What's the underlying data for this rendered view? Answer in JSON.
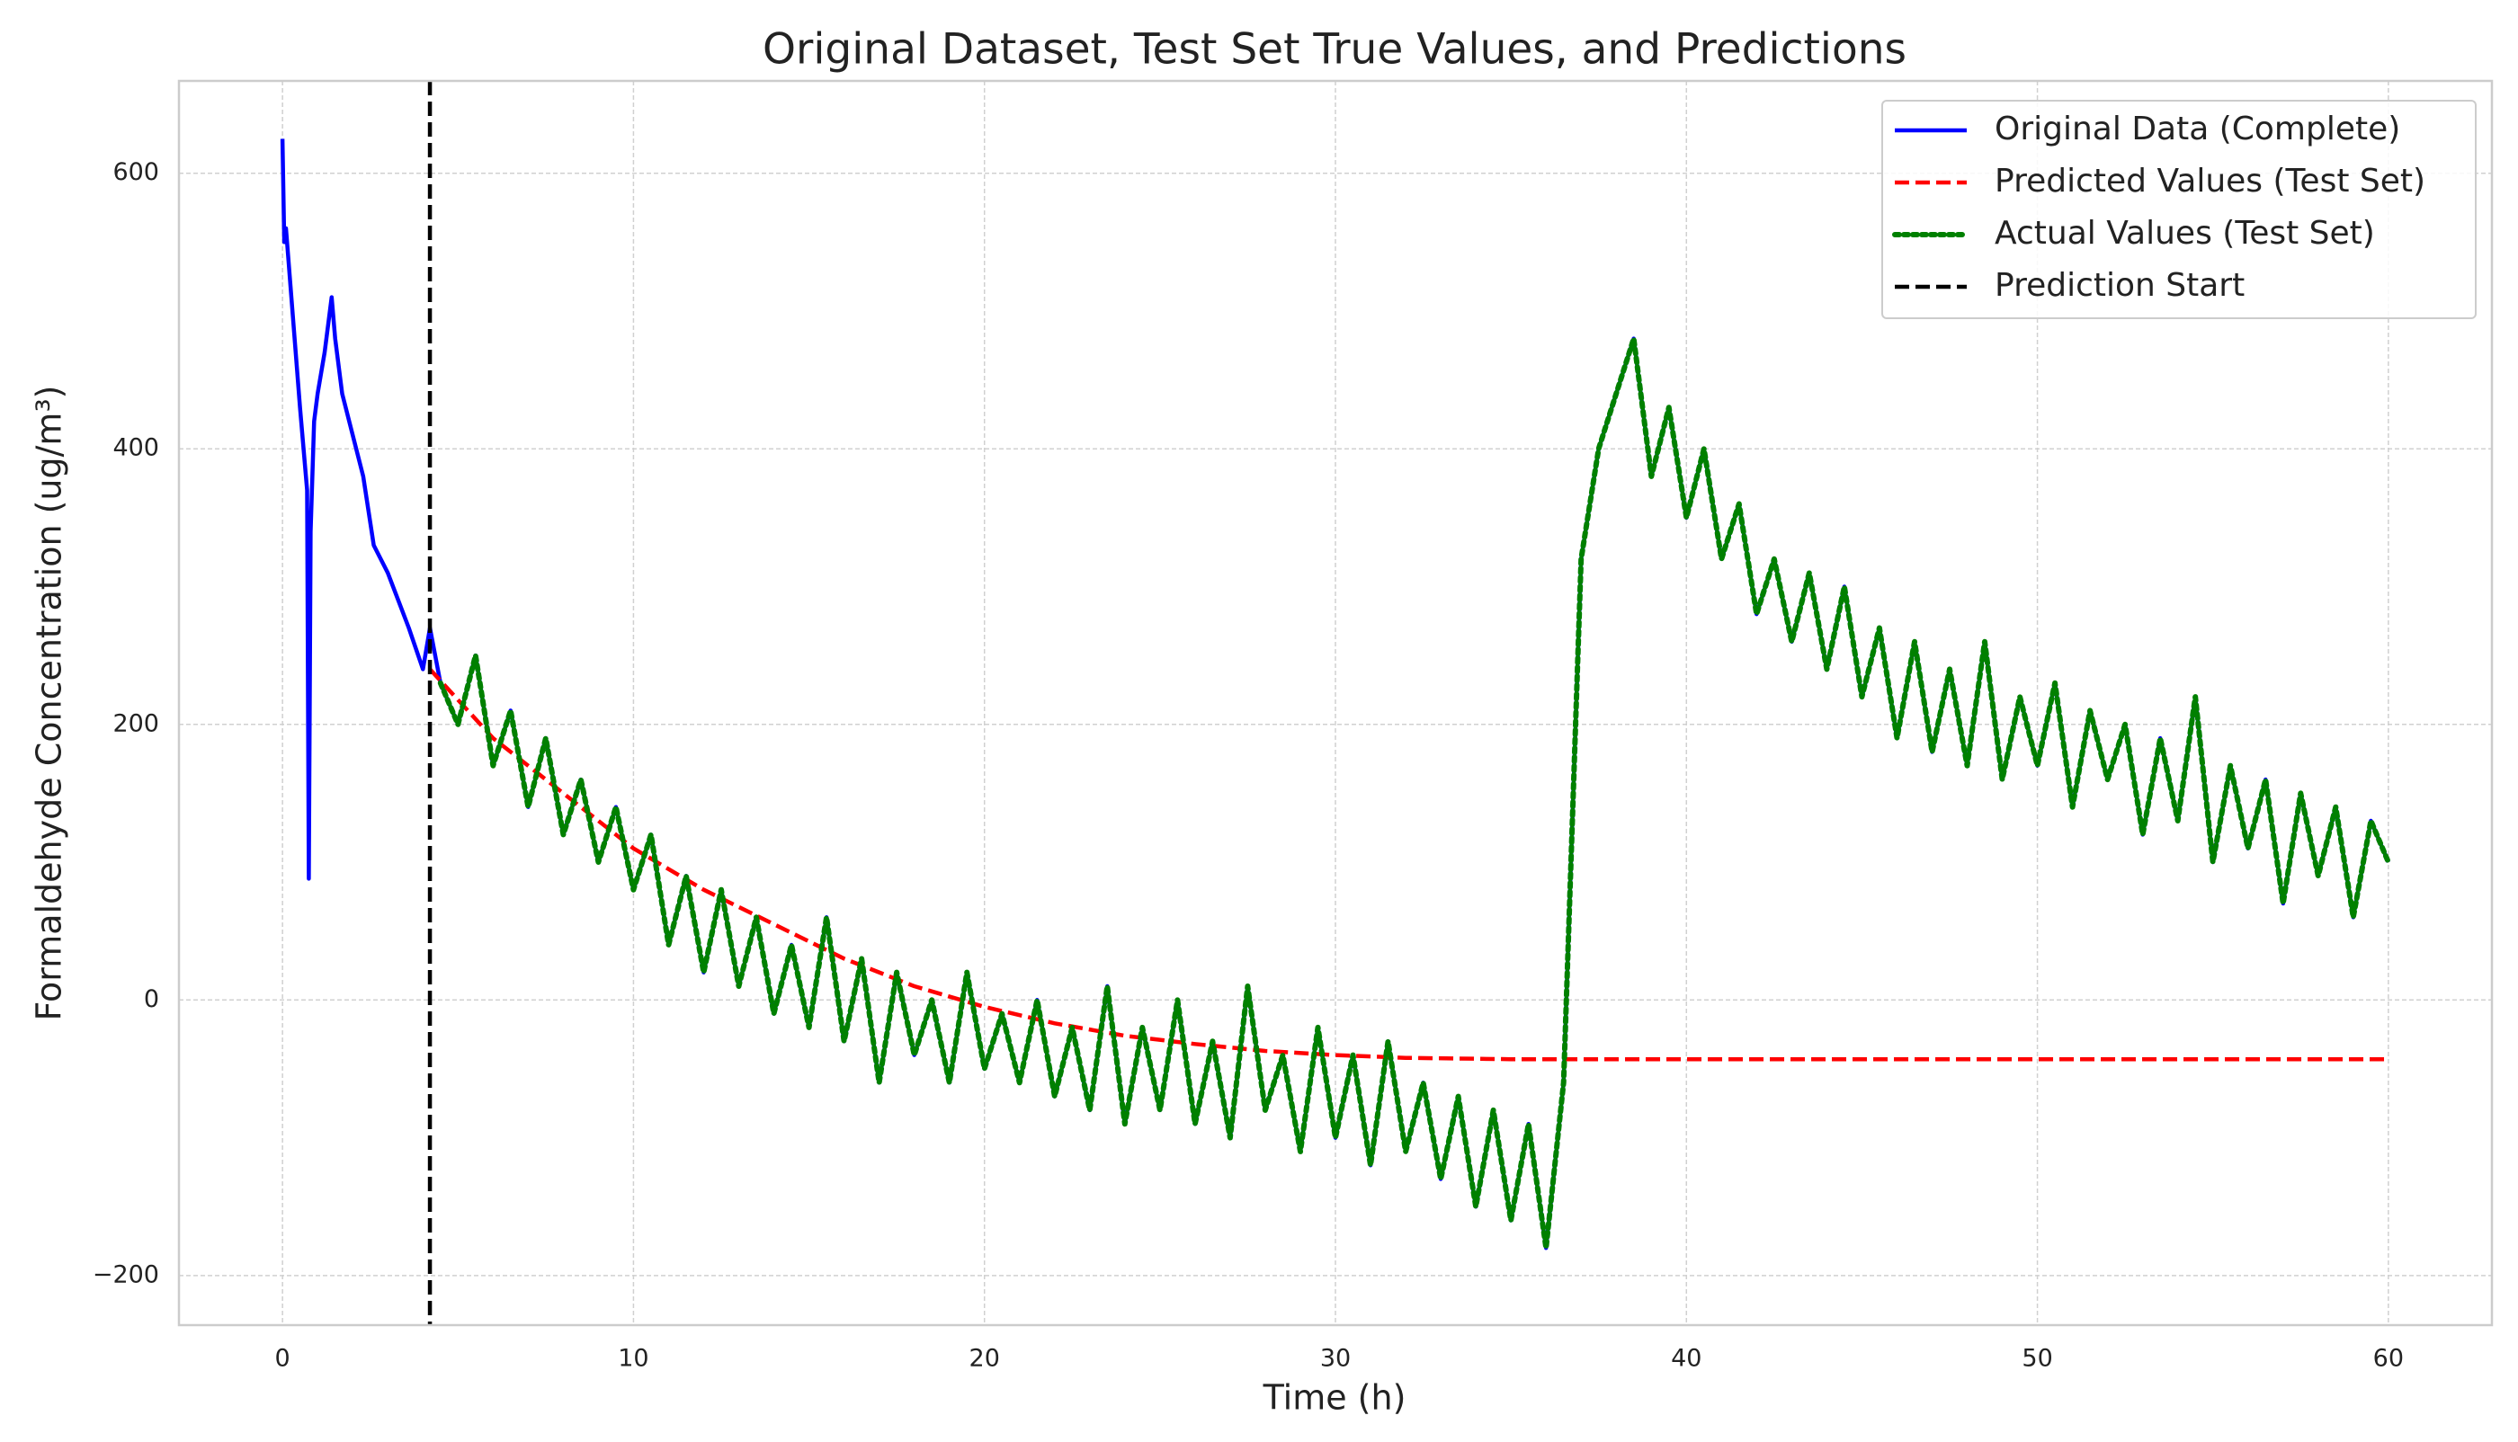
{
  "chart_data": {
    "type": "line",
    "title": "Original Dataset, Test Set True Values, and Predictions",
    "xlabel": "Time (h)",
    "ylabel": "Formaldehyde Concentration (ug/m³)",
    "xlim": [
      -2.95,
      62.95
    ],
    "ylim": [
      -236,
      667
    ],
    "xticks": [
      0,
      10,
      20,
      30,
      40,
      50,
      60
    ],
    "yticks": [
      {
        "value": -200,
        "label": "−200"
      },
      0,
      200,
      400,
      600
    ],
    "grid": true,
    "legend": "upper right",
    "series": [
      {
        "name": "Original Data (Complete)",
        "color": "#0000ff",
        "dash": "solid",
        "x": [
          0,
          0.05,
          0.1,
          0.5,
          0.7,
          0.75,
          0.8,
          0.9,
          1.0,
          1.2,
          1.4,
          1.5,
          1.7,
          2.0,
          2.3,
          2.6,
          3.0,
          3.3,
          3.6,
          4.0,
          4.2,
          4.5,
          5,
          5.5,
          6,
          6.5,
          7,
          7.5,
          8,
          8.5,
          9,
          9.5,
          10,
          10.5,
          11,
          11.5,
          12,
          12.5,
          13,
          13.5,
          14,
          14.5,
          15,
          15.5,
          16,
          16.5,
          17,
          17.5,
          18,
          18.5,
          19,
          19.5,
          20,
          20.5,
          21,
          21.5,
          22,
          22.5,
          23,
          23.5,
          24,
          24.5,
          25,
          25.5,
          26,
          26.5,
          27,
          27.5,
          28,
          28.5,
          29,
          29.5,
          30,
          30.5,
          31,
          31.5,
          32,
          32.5,
          33,
          33.5,
          34,
          34.5,
          35,
          35.5,
          36,
          36.5,
          37,
          37.5,
          38,
          38.5,
          39,
          39.5,
          40,
          40.5,
          41,
          41.5,
          42,
          42.5,
          43,
          43.5,
          44,
          44.5,
          45,
          45.5,
          46,
          46.5,
          47,
          47.5,
          48,
          48.5,
          49,
          49.5,
          50,
          50.5,
          51,
          51.5,
          52,
          52.5,
          53,
          53.5,
          54,
          54.5,
          55,
          55.5,
          56,
          56.5,
          57,
          57.5,
          58,
          58.5,
          59,
          59.5,
          60
        ],
        "values": [
          625,
          550,
          560,
          430,
          370,
          88,
          340,
          420,
          440,
          470,
          510,
          480,
          440,
          410,
          380,
          330,
          310,
          290,
          270,
          240,
          270,
          230,
          200,
          250,
          170,
          210,
          140,
          190,
          120,
          160,
          100,
          140,
          80,
          120,
          40,
          90,
          20,
          80,
          10,
          60,
          -10,
          40,
          -20,
          60,
          -30,
          30,
          -60,
          20,
          -40,
          0,
          -60,
          20,
          -50,
          -10,
          -60,
          0,
          -70,
          -20,
          -80,
          10,
          -90,
          -20,
          -80,
          0,
          -90,
          -30,
          -100,
          10,
          -80,
          -40,
          -110,
          -20,
          -100,
          -40,
          -120,
          -30,
          -110,
          -60,
          -130,
          -70,
          -150,
          -80,
          -160,
          -90,
          -180,
          -60,
          320,
          400,
          440,
          480,
          380,
          430,
          350,
          400,
          320,
          360,
          280,
          320,
          260,
          310,
          240,
          300,
          220,
          270,
          190,
          260,
          180,
          240,
          170,
          260,
          160,
          220,
          170,
          230,
          140,
          210,
          160,
          200,
          120,
          190,
          130,
          220,
          100,
          170,
          110,
          160,
          70,
          150,
          90,
          140,
          60,
          130,
          100
        ]
      },
      {
        "name": "Predicted Values (Test Set)",
        "color": "#ff0000",
        "dash": "dashed",
        "x": [
          4.2,
          6,
          8,
          10,
          12,
          14,
          16,
          18,
          20,
          22,
          24,
          26,
          28,
          30,
          32,
          35,
          40,
          50,
          60
        ],
        "values": [
          240,
          190,
          150,
          110,
          80,
          55,
          30,
          10,
          -5,
          -17,
          -26,
          -32,
          -37,
          -40,
          -42,
          -43,
          -43,
          -43,
          -43
        ]
      },
      {
        "name": "Actual Values (Test Set)",
        "color": "#008000",
        "dash": "dotted",
        "x": [
          4.5,
          5,
          5.5,
          6,
          6.5,
          7,
          7.5,
          8,
          8.5,
          9,
          9.5,
          10,
          10.5,
          11,
          11.5,
          12,
          12.5,
          13,
          13.5,
          14,
          14.5,
          15,
          15.5,
          16,
          16.5,
          17,
          17.5,
          18,
          18.5,
          19,
          19.5,
          20,
          20.5,
          21,
          21.5,
          22,
          22.5,
          23,
          23.5,
          24,
          24.5,
          25,
          25.5,
          26,
          26.5,
          27,
          27.5,
          28,
          28.5,
          29,
          29.5,
          30,
          30.5,
          31,
          31.5,
          32,
          32.5,
          33,
          33.5,
          34,
          34.5,
          35,
          35.5,
          36,
          36.5,
          37,
          37.5,
          38,
          38.5,
          39,
          39.5,
          40,
          40.5,
          41,
          41.5,
          42,
          42.5,
          43,
          43.5,
          44,
          44.5,
          45,
          45.5,
          46,
          46.5,
          47,
          47.5,
          48,
          48.5,
          49,
          49.5,
          50,
          50.5,
          51,
          51.5,
          52,
          52.5,
          53,
          53.5,
          54,
          54.5,
          55,
          55.5,
          56,
          56.5,
          57,
          57.5,
          58,
          58.5,
          59,
          59.5,
          60
        ],
        "values": [
          230,
          200,
          250,
          170,
          210,
          140,
          190,
          120,
          160,
          100,
          140,
          80,
          120,
          40,
          90,
          20,
          80,
          10,
          60,
          -10,
          40,
          -20,
          60,
          -30,
          30,
          -60,
          20,
          -40,
          0,
          -60,
          20,
          -50,
          -10,
          -60,
          0,
          -70,
          -20,
          -80,
          10,
          -90,
          -20,
          -80,
          0,
          -90,
          -30,
          -100,
          10,
          -80,
          -40,
          -110,
          -20,
          -100,
          -40,
          -120,
          -30,
          -110,
          -60,
          -130,
          -70,
          -150,
          -80,
          -160,
          -90,
          -180,
          -60,
          320,
          400,
          440,
          480,
          380,
          430,
          350,
          400,
          320,
          360,
          280,
          320,
          260,
          310,
          240,
          300,
          220,
          270,
          190,
          260,
          180,
          240,
          170,
          260,
          160,
          220,
          170,
          230,
          140,
          210,
          160,
          200,
          120,
          190,
          130,
          220,
          100,
          170,
          110,
          160,
          70,
          150,
          90,
          140,
          60,
          130,
          100
        ]
      }
    ],
    "vline": {
      "name": "Prediction Start",
      "color": "#000000",
      "dash": "dashed",
      "x": 4.2
    }
  }
}
